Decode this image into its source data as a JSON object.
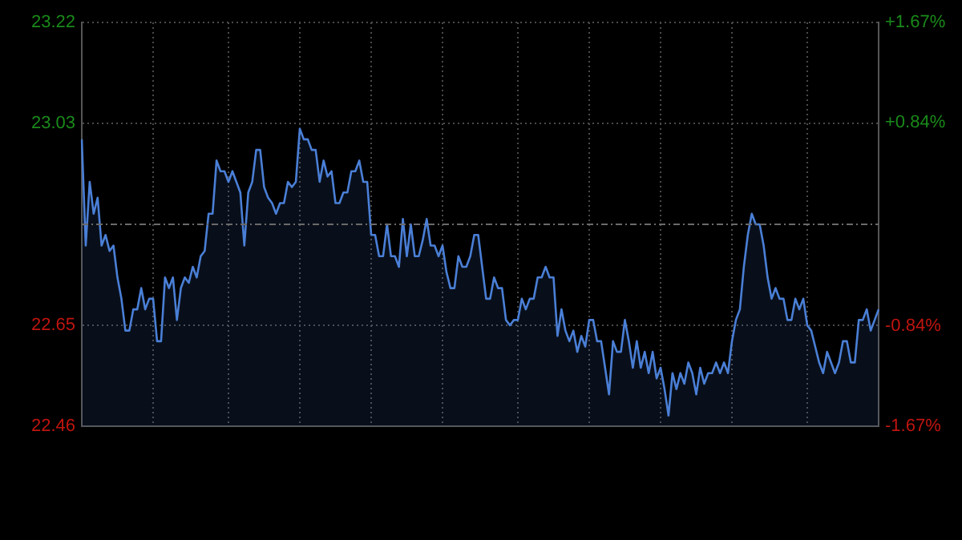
{
  "chart_data": {
    "type": "area",
    "categories": [
      null,
      null,
      null,
      null,
      null,
      null,
      null,
      null,
      null,
      null,
      null,
      null,
      null,
      null,
      null,
      null,
      null,
      null,
      null,
      null,
      null,
      null,
      null,
      null,
      null,
      null,
      null,
      null,
      null,
      null,
      null,
      null,
      null,
      null,
      null,
      null,
      null,
      null,
      null,
      null,
      null,
      null,
      null,
      null,
      null,
      null,
      null,
      null,
      null,
      null,
      null,
      null,
      null,
      null,
      null,
      null,
      null,
      null,
      null,
      null,
      null,
      null,
      null,
      null,
      null,
      null,
      null,
      null,
      null,
      null,
      null,
      null,
      null,
      null,
      null,
      null,
      null,
      null,
      null,
      null,
      null,
      null,
      null,
      null,
      null,
      null,
      null,
      null,
      null,
      null,
      null,
      null,
      null,
      null,
      null,
      null,
      null,
      null,
      null,
      null,
      null,
      null,
      null,
      null,
      null,
      null,
      null,
      null,
      null,
      null,
      null,
      null,
      null,
      null,
      null,
      null,
      null,
      null,
      null,
      null,
      null,
      null,
      null,
      null,
      null,
      null,
      null,
      null,
      null,
      null,
      null,
      null,
      null,
      null,
      null,
      null,
      null,
      null,
      null,
      null,
      null,
      null,
      null,
      null,
      null,
      null,
      null,
      null,
      null,
      null,
      null,
      null,
      null,
      null,
      null,
      null,
      null,
      null,
      null,
      null,
      null,
      null,
      null,
      null,
      null,
      null,
      null,
      null,
      null,
      null,
      null,
      null,
      null,
      null,
      null,
      null,
      null,
      null,
      null,
      null,
      null,
      null,
      null,
      null,
      null,
      null,
      null,
      null,
      null,
      null,
      null,
      null,
      null,
      null,
      null,
      null,
      null,
      null,
      null,
      null,
      null,
      null
    ],
    "series": [
      {
        "color": "#4a7fd6",
        "values": [
          23.0,
          22.8,
          22.92,
          22.86,
          22.89,
          22.8,
          22.82,
          22.79,
          22.8,
          22.74,
          22.7,
          22.64,
          22.64,
          22.68,
          22.68,
          22.72,
          22.68,
          22.7,
          22.7,
          22.62,
          22.62,
          22.74,
          22.72,
          22.74,
          22.66,
          22.72,
          22.74,
          22.73,
          22.76,
          22.74,
          22.78,
          22.79,
          22.86,
          22.86,
          22.96,
          22.94,
          22.94,
          22.92,
          22.94,
          22.92,
          22.9,
          22.8,
          22.9,
          22.92,
          22.98,
          22.98,
          22.91,
          22.89,
          22.88,
          22.86,
          22.88,
          22.88,
          22.92,
          22.91,
          22.92,
          23.02,
          23.0,
          23.0,
          22.98,
          22.98,
          22.92,
          22.96,
          22.93,
          22.94,
          22.88,
          22.88,
          22.9,
          22.9,
          22.94,
          22.94,
          22.96,
          22.92,
          22.92,
          22.82,
          22.82,
          22.78,
          22.78,
          22.84,
          22.78,
          22.78,
          22.76,
          22.85,
          22.78,
          22.84,
          22.78,
          22.78,
          22.81,
          22.85,
          22.8,
          22.8,
          22.78,
          22.8,
          22.75,
          22.72,
          22.72,
          22.78,
          22.76,
          22.76,
          22.78,
          22.82,
          22.82,
          22.76,
          22.7,
          22.7,
          22.74,
          22.72,
          22.72,
          22.66,
          22.65,
          22.66,
          22.66,
          22.7,
          22.68,
          22.7,
          22.7,
          22.74,
          22.74,
          22.76,
          22.74,
          22.74,
          22.63,
          22.68,
          22.64,
          22.62,
          22.64,
          22.6,
          22.63,
          22.61,
          22.66,
          22.66,
          22.62,
          22.62,
          22.57,
          22.52,
          22.62,
          22.6,
          22.6,
          22.66,
          22.62,
          22.57,
          22.62,
          22.57,
          22.6,
          22.56,
          22.6,
          22.55,
          22.57,
          22.53,
          22.48,
          22.56,
          22.53,
          22.56,
          22.54,
          22.58,
          22.56,
          22.52,
          22.57,
          22.54,
          22.56,
          22.56,
          22.58,
          22.56,
          22.58,
          22.56,
          22.62,
          22.66,
          22.68,
          22.76,
          22.82,
          22.86,
          22.84,
          22.84,
          22.8,
          22.74,
          22.7,
          22.72,
          22.7,
          22.7,
          22.66,
          22.66,
          22.7,
          22.68,
          22.7,
          22.65,
          22.64,
          22.61,
          22.58,
          22.56,
          22.6,
          22.58,
          22.56,
          22.58,
          22.62,
          22.62,
          22.58,
          22.58,
          22.66,
          22.66,
          22.68,
          22.64,
          22.66,
          22.68
        ]
      }
    ],
    "ylim": [
      22.46,
      23.22
    ],
    "yticks": [
      22.46,
      22.65,
      23.03,
      23.22
    ],
    "ref_lines": [
      {
        "axis": "y",
        "value": 22.84,
        "color": "#6a6a6a",
        "line_style": "dashdot"
      }
    ],
    "y2lim": [
      -1.67,
      1.67
    ],
    "y2ticks": [
      {
        "value": -1.67,
        "label": "-1.67%"
      },
      {
        "value": -0.84,
        "label": "-0.84%"
      },
      {
        "value": 0.84,
        "label": "+0.84%"
      },
      {
        "value": 1.67,
        "label": "+1.67%"
      }
    ],
    "tick_labels": "y",
    "grid": true,
    "marker": "none",
    "line_style": "solid",
    "legend": false
  }
}
